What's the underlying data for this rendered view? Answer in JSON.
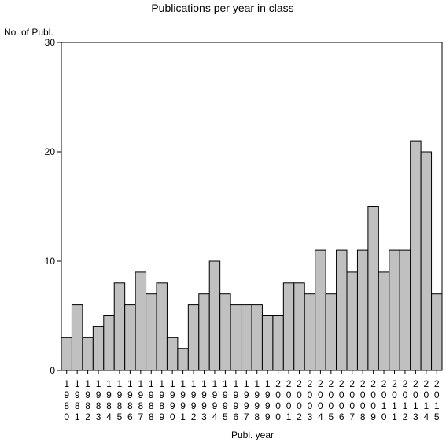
{
  "chart_data": {
    "type": "bar",
    "title": "Publications per year in class",
    "xlabel": "Publ. year",
    "ylabel": "No. of Publ.",
    "ylim": [
      0,
      30
    ],
    "yticks": [
      "0",
      "10",
      "20",
      "30"
    ],
    "categories": [
      "1980",
      "1981",
      "1982",
      "1983",
      "1984",
      "1985",
      "1986",
      "1987",
      "1988",
      "1989",
      "1990",
      "1991",
      "1992",
      "1993",
      "1994",
      "1995",
      "1996",
      "1997",
      "1998",
      "1999",
      "2000",
      "2001",
      "2002",
      "2003",
      "2004",
      "2005",
      "2006",
      "2007",
      "2008",
      "2009",
      "2010",
      "2011",
      "2012",
      "2013",
      "2014",
      "2015"
    ],
    "values": [
      3,
      6,
      3,
      4,
      5,
      8,
      6,
      9,
      7,
      8,
      3,
      2,
      6,
      7,
      10,
      7,
      6,
      6,
      6,
      5,
      5,
      8,
      8,
      7,
      11,
      7,
      11,
      9,
      11,
      15,
      9,
      11,
      11,
      21,
      20,
      7
    ],
    "bar_color": "#c0c0c0",
    "grid": false
  }
}
